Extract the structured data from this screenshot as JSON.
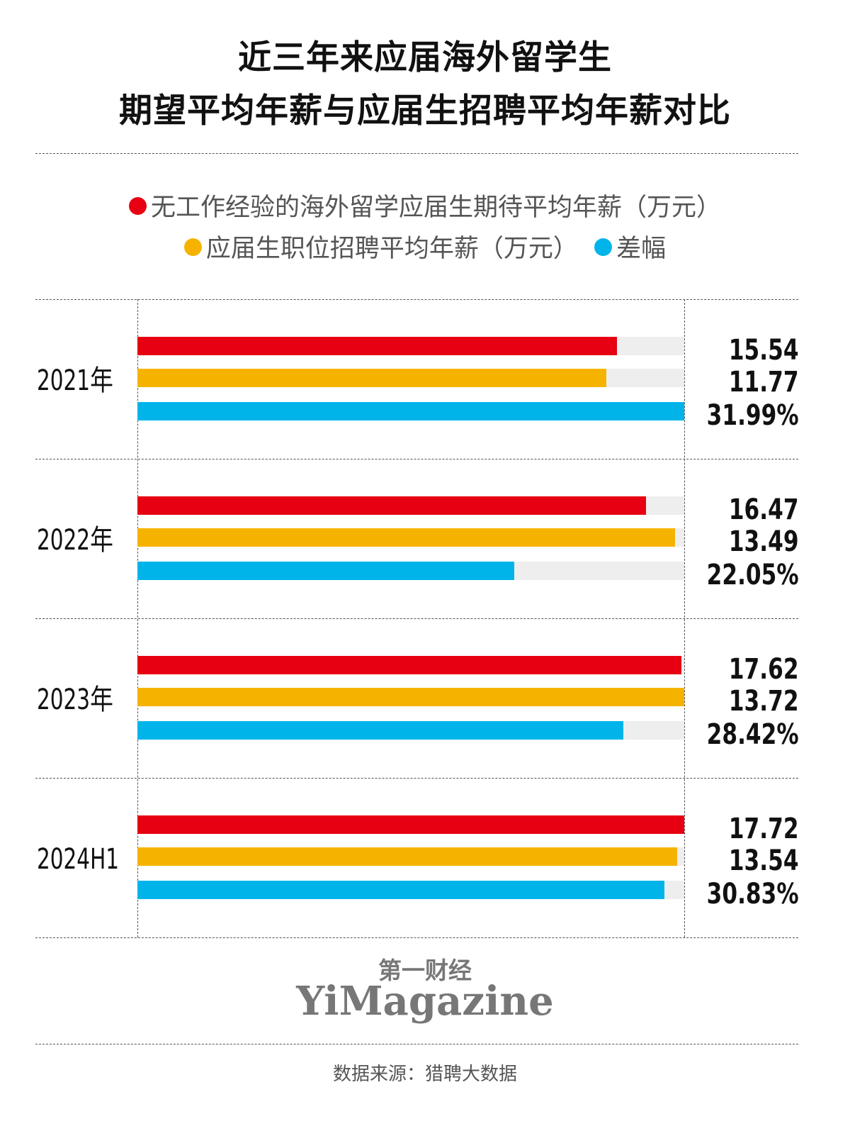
{
  "chart_data": {
    "type": "bar",
    "title": "近三年来应届海外留学生\n期望平均年薪与应届生招聘平均年薪对比",
    "title_lines": [
      "近三年来应届海外留学生",
      "期望平均年薪与应届生招聘平均年薪对比"
    ],
    "legend": [
      {
        "name": "无工作经验的海外留学应届生期待平均年薪（万元）",
        "color": "#e60012"
      },
      {
        "name": "应届生职位招聘平均年薪（万元）",
        "color": "#f5b300"
      },
      {
        "name": "差幅",
        "color": "#00b4ea"
      }
    ],
    "categories": [
      "2021年",
      "2022年",
      "2023年",
      "2024H1"
    ],
    "series": [
      {
        "name": "无工作经验的海外留学应届生期待平均年薪（万元）",
        "color": "#e60012",
        "values": [
          15.54,
          16.47,
          17.62,
          17.72
        ],
        "labels": [
          "15.54",
          "16.47",
          "17.62",
          "17.72"
        ]
      },
      {
        "name": "应届生职位招聘平均年薪（万元）",
        "color": "#f5b300",
        "values": [
          11.77,
          13.49,
          13.72,
          13.54
        ],
        "labels": [
          "11.77",
          "13.49",
          "13.72",
          "13.54"
        ]
      },
      {
        "name": "差幅",
        "color": "#00b4ea",
        "values": [
          31.99,
          22.05,
          28.42,
          30.83
        ],
        "labels": [
          "31.99%",
          "22.05%",
          "28.42%",
          "30.83%"
        ]
      }
    ],
    "orientation": "horizontal",
    "track_color": "#eeeeee"
  },
  "logo": {
    "cn": "第一财经",
    "en": "YiMagazine"
  },
  "source": "数据来源：猎聘大数据"
}
